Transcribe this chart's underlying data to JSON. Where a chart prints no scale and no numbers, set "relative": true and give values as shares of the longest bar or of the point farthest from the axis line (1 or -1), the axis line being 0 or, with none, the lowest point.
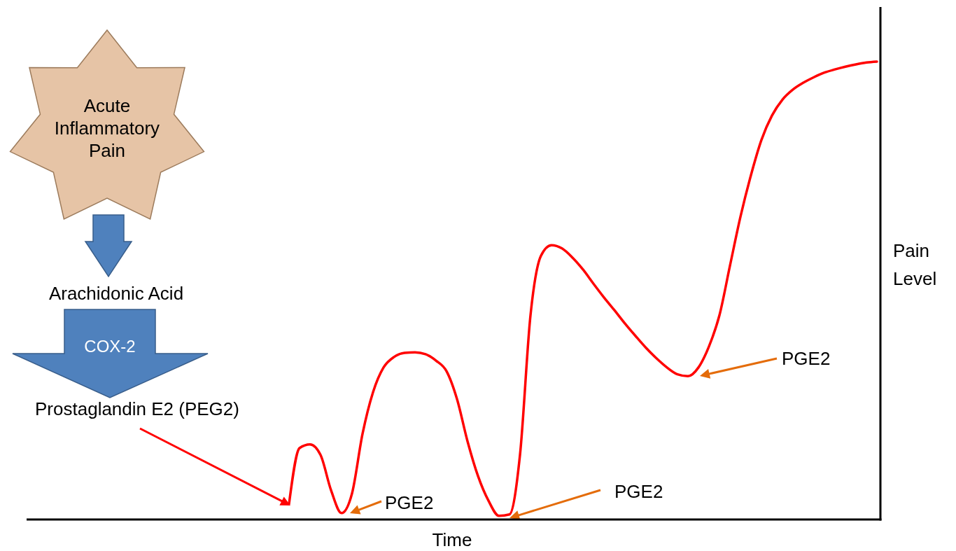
{
  "chart_data": {
    "type": "line",
    "relative": true,
    "xlabel": "Time",
    "ylabel": "Pain Level",
    "categories": [
      null,
      null,
      null,
      null,
      null,
      null,
      null,
      null,
      null,
      null,
      null,
      null,
      null,
      null,
      null,
      null,
      null,
      null,
      null,
      null,
      null,
      null,
      null,
      null,
      null,
      null,
      null,
      null,
      null,
      null,
      null,
      null,
      null,
      null,
      null,
      null,
      null,
      null,
      null,
      null,
      null,
      null,
      null,
      null,
      null,
      null,
      null,
      null,
      null,
      null,
      null,
      null,
      null,
      null,
      null,
      null,
      null
    ],
    "series": [
      {
        "color": "#ff0000",
        "values": [
          0.034,
          0.156,
          0.164,
          0.141,
          0.064,
          0.014,
          0.057,
          0.187,
          0.278,
          0.332,
          0.355,
          0.364,
          0.365,
          0.361,
          0.347,
          0.324,
          0.263,
          0.171,
          0.095,
          0.041,
          0.008,
          0.011,
          0.141,
          0.446,
          0.576,
          0.599,
          0.592,
          0.572,
          0.546,
          0.515,
          0.485,
          0.457,
          0.428,
          0.401,
          0.375,
          0.352,
          0.332,
          0.317,
          0.313,
          0.332,
          0.378,
          0.446,
          0.554,
          0.661,
          0.752,
          0.829,
          0.882,
          0.917,
          0.939,
          0.954,
          0.966,
          0.976,
          0.983,
          0.989,
          0.994,
          0.998,
          1
        ]
      }
    ],
    "annotations": [
      "Acute Inflammatory Pain",
      "Arachidonic Acid",
      "COX-2",
      "Prostaglandin E2 (PEG2)",
      "PGE2",
      "PGE2",
      "PGE2"
    ]
  }
}
